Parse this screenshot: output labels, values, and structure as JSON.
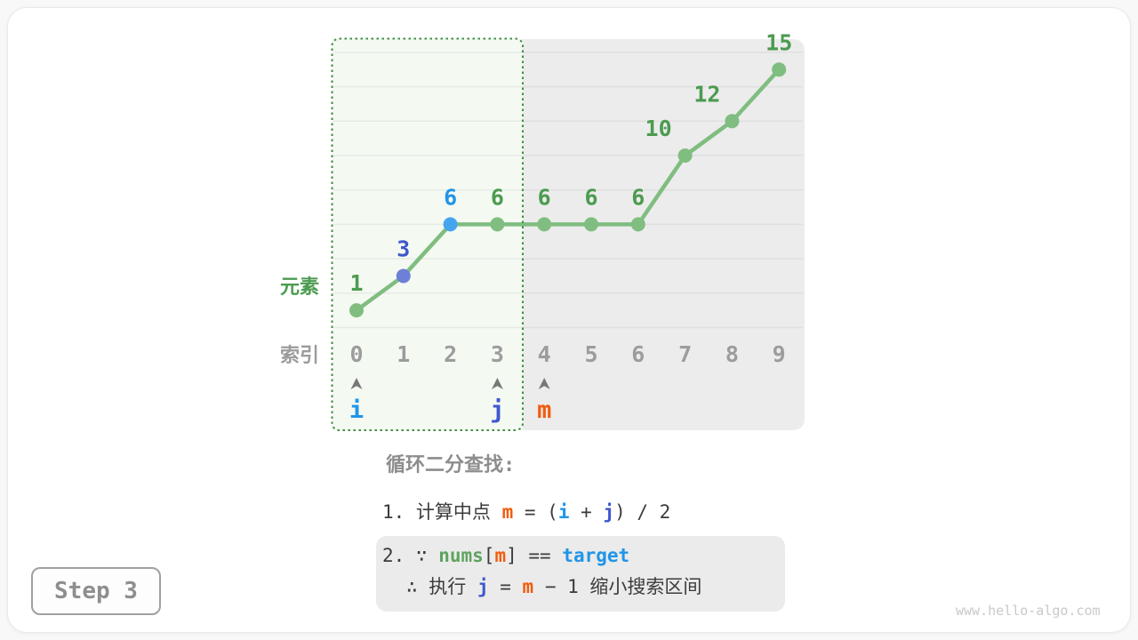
{
  "colors": {
    "line_green": "#80bd80",
    "label_green": "#4c9b50",
    "border_green": "#3e8e41",
    "highlight_fill": "#f4f9f2",
    "excluded_fill": "#ececec",
    "gridline": "rgba(0,0,0,0.055)",
    "blue_text": "#2095e8",
    "blue_dot": "#45a4ee",
    "indigo_text": "#3f57cd",
    "indigo_dot": "#6e7fd8",
    "orange_text": "#f15c0d",
    "code_green": "#60a360",
    "gray_text": "#9c9c9c",
    "dark_text": "#3b3b3b",
    "arrow_gray": "#787878"
  },
  "chart_data": {
    "type": "line",
    "ylabel": "元素",
    "xlabel": "索引",
    "x": [
      0,
      1,
      2,
      3,
      4,
      5,
      6,
      7,
      8,
      9
    ],
    "values": [
      1,
      3,
      6,
      6,
      6,
      6,
      6,
      10,
      12,
      15
    ],
    "index_labels": [
      "0",
      "1",
      "2",
      "3",
      "4",
      "5",
      "6",
      "7",
      "8",
      "9"
    ],
    "ylim": [
      0,
      16
    ],
    "grid_step": 2,
    "grid": true,
    "point_color_keys": [
      "green",
      "indigo",
      "blue",
      "green",
      "green",
      "green",
      "green",
      "green",
      "green",
      "green"
    ],
    "label_dx": [
      0,
      0,
      0,
      0,
      0,
      0,
      0,
      -30,
      -28,
      0
    ],
    "highlight_indices": [
      0,
      3
    ],
    "excluded_indices": [
      4,
      9
    ],
    "pointers": [
      {
        "label": "i",
        "index": 0,
        "color_key": "blue"
      },
      {
        "label": "j",
        "index": 3,
        "color_key": "indigo"
      },
      {
        "label": "m",
        "index": 4,
        "color_key": "orange"
      }
    ]
  },
  "caption": {
    "heading": "循环二分查找:",
    "step1_segments": [
      {
        "t": "1. 计算中点 "
      },
      {
        "t": "m",
        "c": "orange",
        "b": true
      },
      {
        "t": " = ("
      },
      {
        "t": "i",
        "c": "blue",
        "b": true
      },
      {
        "t": " + "
      },
      {
        "t": "j",
        "c": "indigo",
        "b": true
      },
      {
        "t": ") / 2"
      }
    ],
    "step2_line1_segments": [
      {
        "t": "2. ∵ "
      },
      {
        "t": "nums",
        "c": "green",
        "b": true
      },
      {
        "t": "["
      },
      {
        "t": "m",
        "c": "orange",
        "b": true
      },
      {
        "t": "] == "
      },
      {
        "t": "target",
        "c": "blue",
        "b": true
      }
    ],
    "step2_line2_segments": [
      {
        "t": "∴ 执行 "
      },
      {
        "t": "j",
        "c": "indigo",
        "b": true
      },
      {
        "t": " = "
      },
      {
        "t": "m",
        "c": "orange",
        "b": true
      },
      {
        "t": " − 1 缩小搜索区间"
      }
    ]
  },
  "footer": {
    "step_label": "Step 3",
    "watermark": "www.hello-algo.com"
  }
}
